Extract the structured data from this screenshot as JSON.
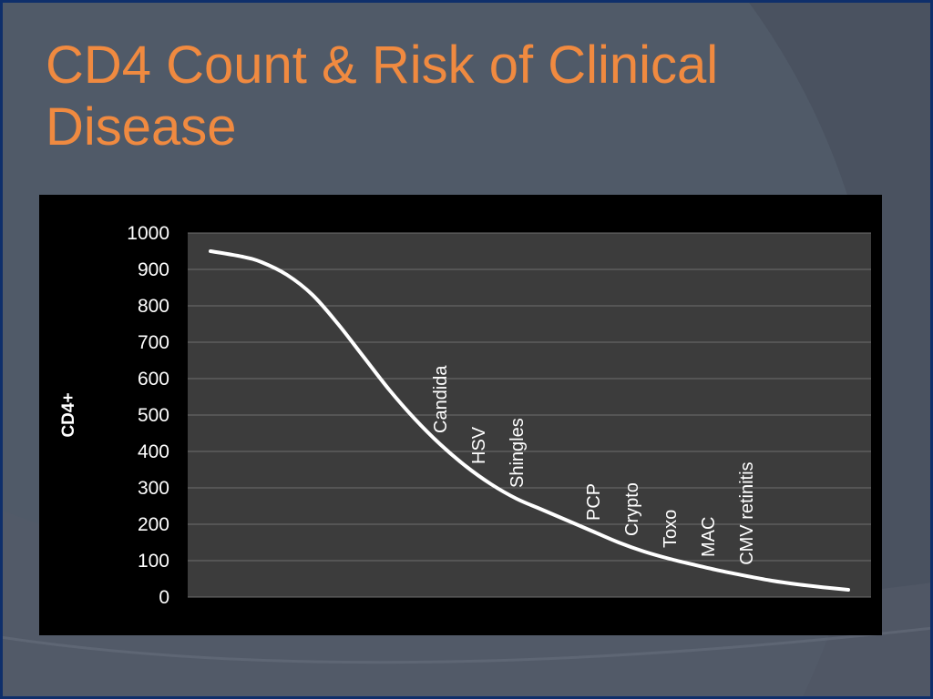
{
  "slide": {
    "title_line1": "CD4 Count & Risk of Clinical",
    "title_line2": "Disease",
    "colors": {
      "title": "#f08a40",
      "background": "#4a5260",
      "border": "#0f2f6b",
      "plot_area": "#3c3c3c",
      "curve": "#ffffff"
    }
  },
  "chart_data": {
    "type": "line",
    "title": "",
    "xlabel": "",
    "ylabel": "CD4+",
    "ylim": [
      0,
      1000
    ],
    "yticks": [
      0,
      100,
      200,
      300,
      400,
      500,
      600,
      700,
      800,
      900,
      1000
    ],
    "xlim": [
      0,
      100
    ],
    "grid": true,
    "series": [
      {
        "x": [
          0,
          5,
          8,
          12,
          16,
          20,
          24,
          28,
          32,
          36,
          40,
          44,
          48,
          52,
          56,
          60,
          64,
          68,
          72,
          76,
          80,
          84,
          88,
          92,
          96,
          100
        ],
        "values": [
          950,
          935,
          920,
          885,
          830,
          750,
          660,
          570,
          490,
          420,
          360,
          310,
          270,
          240,
          210,
          180,
          150,
          125,
          105,
          88,
          72,
          58,
          45,
          35,
          27,
          20
        ]
      }
    ],
    "annotations": [
      {
        "text": "Candida",
        "x": 36
      },
      {
        "text": "HSV",
        "x": 42
      },
      {
        "text": "Shingles",
        "x": 48
      },
      {
        "text": "PCP",
        "x": 60
      },
      {
        "text": "Crypto",
        "x": 66
      },
      {
        "text": "Toxo",
        "x": 72
      },
      {
        "text": "MAC",
        "x": 78
      },
      {
        "text": "CMV retinitis",
        "x": 84
      }
    ]
  }
}
